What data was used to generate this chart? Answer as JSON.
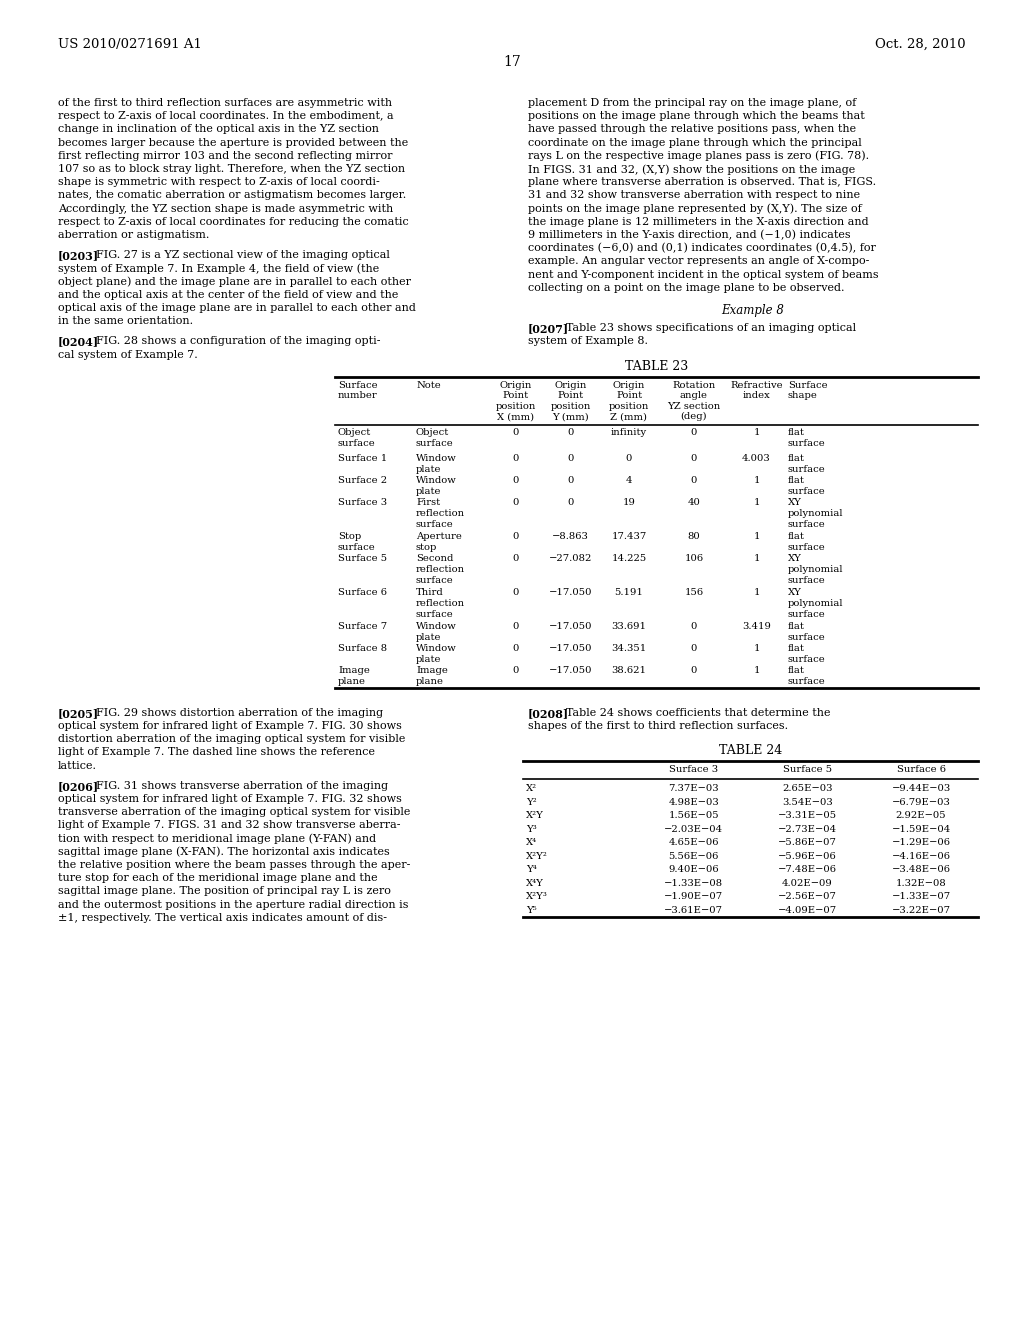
{
  "page_number": "17",
  "patent_number": "US 2010/0271691 A1",
  "patent_date": "Oct. 28, 2010",
  "background_color": "#ffffff",
  "left_col_text": [
    "of the first to third reflection surfaces are asymmetric with",
    "respect to Z-axis of local coordinates. In the embodiment, a",
    "change in inclination of the optical axis in the YZ section",
    "becomes larger because the aperture is provided between the",
    "first reflecting mirror 103 and the second reflecting mirror",
    "107 so as to block stray light. Therefore, when the YZ section",
    "shape is symmetric with respect to Z-axis of local coordi-",
    "nates, the comatic aberration or astigmatism becomes larger.",
    "Accordingly, the YZ section shape is made asymmetric with",
    "respect to Z-axis of local coordinates for reducing the comatic",
    "aberration or astigmatism."
  ],
  "p203_lines": [
    "[0203]   FIG. 27 is a YZ sectional view of the imaging optical",
    "system of Example 7. In Example 4, the field of view (the",
    "object plane) and the image plane are in parallel to each other",
    "and the optical axis at the center of the field of view and the",
    "optical axis of the image plane are in parallel to each other and",
    "in the same orientation."
  ],
  "p204_lines": [
    "[0204]   FIG. 28 shows a configuration of the imaging opti-",
    "cal system of Example 7."
  ],
  "right_col_text": [
    "placement D from the principal ray on the image plane, of",
    "positions on the image plane through which the beams that",
    "have passed through the relative positions pass, when the",
    "coordinate on the image plane through which the principal",
    "rays L on the respective image planes pass is zero (FIG. 78).",
    "In FIGS. 31 and 32, (X,Y) show the positions on the image",
    "plane where transverse aberration is observed. That is, FIGS.",
    "31 and 32 show transverse aberration with respect to nine",
    "points on the image plane represented by (X,Y). The size of",
    "the image plane is 12 millimeters in the X-axis direction and",
    "9 millimeters in the Y-axis direction, and (−1,0) indicates",
    "coordinates (−6,0) and (0,1) indicates coordinates (0,4.5), for",
    "example. An angular vector represents an angle of X-compo-",
    "nent and Y-component incident in the optical system of beams",
    "collecting on a point on the image plane to be observed."
  ],
  "example8_header": "Example 8",
  "p207_lines": [
    "[0207]   Table 23 shows specifications of an imaging optical",
    "system of Example 8."
  ],
  "table23_title": "TABLE 23",
  "table23_col_headers": [
    "Surface\nnumber",
    "Note",
    "Origin\nPoint\nposition\nX (mm)",
    "Origin\nPoint\nposition\nY (mm)",
    "Origin\nPoint\nposition\nZ (mm)",
    "Rotation\nangle\nYZ section\n(deg)",
    "Refractive\nindex",
    "Surface\nshape"
  ],
  "table23_rows": [
    [
      "Object\nsurface",
      "Object\nsurface",
      "0",
      "0",
      "infinity",
      "0",
      "1",
      "flat\nsurface"
    ],
    [
      "Surface 1",
      "Window\nplate",
      "0",
      "0",
      "0",
      "0",
      "4.003",
      "flat\nsurface"
    ],
    [
      "Surface 2",
      "Window\nplate",
      "0",
      "0",
      "4",
      "0",
      "1",
      "flat\nsurface"
    ],
    [
      "Surface 3",
      "First\nreflection\nsurface",
      "0",
      "0",
      "19",
      "40",
      "1",
      "XY\npolynomial\nsurface"
    ],
    [
      "Stop\nsurface",
      "Aperture\nstop",
      "0",
      "−8.863",
      "17.437",
      "80",
      "1",
      "flat\nsurface"
    ],
    [
      "Surface 5",
      "Second\nreflection\nsurface",
      "0",
      "−27.082",
      "14.225",
      "106",
      "1",
      "XY\npolynomial\nsurface"
    ],
    [
      "Surface 6",
      "Third\nreflection\nsurface",
      "0",
      "−17.050",
      "5.191",
      "156",
      "1",
      "XY\npolynomial\nsurface"
    ],
    [
      "Surface 7",
      "Window\nplate",
      "0",
      "−17.050",
      "33.691",
      "0",
      "3.419",
      "flat\nsurface"
    ],
    [
      "Surface 8",
      "Window\nplate",
      "0",
      "−17.050",
      "34.351",
      "0",
      "1",
      "flat\nsurface"
    ],
    [
      "Image\nplane",
      "Image\nplane",
      "0",
      "−17.050",
      "38.621",
      "0",
      "1",
      "flat\nsurface"
    ]
  ],
  "table23_row_heights": [
    26,
    22,
    22,
    34,
    22,
    34,
    34,
    22,
    22,
    22
  ],
  "p205_lines": [
    "[0205]   FIG. 29 shows distortion aberration of the imaging",
    "optical system for infrared light of Example 7. FIG. 30 shows",
    "distortion aberration of the imaging optical system for visible",
    "light of Example 7. The dashed line shows the reference",
    "lattice."
  ],
  "p206_lines": [
    "[0206]   FIG. 31 shows transverse aberration of the imaging",
    "optical system for infrared light of Example 7. FIG. 32 shows",
    "transverse aberration of the imaging optical system for visible",
    "light of Example 7. FIGS. 31 and 32 show transverse aberra-",
    "tion with respect to meridional image plane (Y-FAN) and",
    "sagittal image plane (X-FAN). The horizontal axis indicates",
    "the relative position where the beam passes through the aper-",
    "ture stop for each of the meridional image plane and the",
    "sagittal image plane. The position of principal ray L is zero",
    "and the outermost positions in the aperture radial direction is",
    "±1, respectively. The vertical axis indicates amount of dis-"
  ],
  "p208_lines": [
    "[0208]   Table 24 shows coefficients that determine the",
    "shapes of the first to third reflection surfaces."
  ],
  "table24_title": "TABLE 24",
  "table24_col_headers": [
    "",
    "Surface 3",
    "Surface 5",
    "Surface 6"
  ],
  "table24_rows": [
    [
      "X²",
      "7.37E−03",
      "2.65E−03",
      "−9.44E−03"
    ],
    [
      "Y²",
      "4.98E−03",
      "3.54E−03",
      "−6.79E−03"
    ],
    [
      "X²Y",
      "1.56E−05",
      "−3.31E−05",
      "2.92E−05"
    ],
    [
      "Y³",
      "−2.03E−04",
      "−2.73E−04",
      "−1.59E−04"
    ],
    [
      "X⁴",
      "4.65E−06",
      "−5.86E−07",
      "−1.29E−06"
    ],
    [
      "X²Y²",
      "5.56E−06",
      "−5.96E−06",
      "−4.16E−06"
    ],
    [
      "Y⁴",
      "9.40E−06",
      "−7.48E−06",
      "−3.48E−06"
    ],
    [
      "X⁴Y",
      "−1.33E−08",
      "4.02E−09",
      "1.32E−08"
    ],
    [
      "X²Y³",
      "−1.90E−07",
      "−2.56E−07",
      "−1.33E−07"
    ],
    [
      "Y⁵",
      "−3.61E−07",
      "−4.09E−07",
      "−3.22E−07"
    ]
  ]
}
